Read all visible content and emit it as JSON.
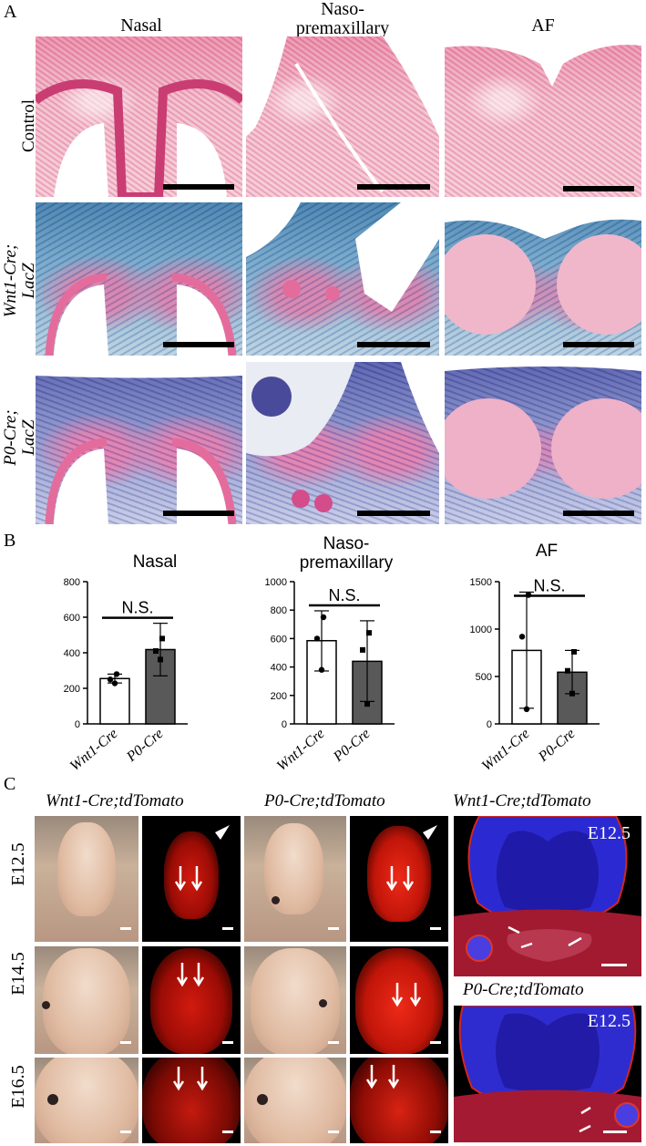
{
  "panel_a": {
    "letter": "A",
    "columns": [
      "Nasal",
      "Naso-\npremaxillary",
      "AF"
    ],
    "rows": [
      "Control",
      "Wnt1-Cre;\nLacZ",
      "P0-Cre;\nLacZ"
    ]
  },
  "panel_b": {
    "letter": "B"
  },
  "chart_data": [
    {
      "type": "bar",
      "title": "Nasal",
      "categories": [
        "Wnt1-Cre",
        "P0-Cre"
      ],
      "values": [
        255,
        418
      ],
      "errors": [
        [
          230,
          280
        ],
        [
          270,
          566
        ]
      ],
      "points": [
        [
          280,
          250,
          228
        ],
        [
          480,
          410,
          362
        ]
      ],
      "ylim": [
        0,
        800
      ],
      "yticks": [
        0,
        200,
        400,
        600,
        800
      ],
      "significance": "N.S."
    },
    {
      "type": "bar",
      "title": "Naso-\npremaxillary",
      "categories": [
        "Wnt1-Cre",
        "P0-Cre"
      ],
      "values": [
        585,
        440
      ],
      "errors": [
        [
          372,
          795
        ],
        [
          158,
          725
        ]
      ],
      "points": [
        [
          750,
          600,
          380
        ],
        [
          640,
          520,
          140
        ]
      ],
      "ylim": [
        0,
        1000
      ],
      "yticks": [
        0,
        200,
        400,
        600,
        800,
        1000
      ],
      "significance": "N.S."
    },
    {
      "type": "bar",
      "title": "AF",
      "categories": [
        "Wnt1-Cre",
        "P0-Cre"
      ],
      "values": [
        775,
        545
      ],
      "errors": [
        [
          165,
          1390
        ],
        [
          318,
          775
        ]
      ],
      "points": [
        [
          1360,
          920,
          155
        ],
        [
          760,
          560,
          320
        ]
      ],
      "ylim": [
        0,
        1500
      ],
      "yticks": [
        0,
        500,
        1000,
        1500
      ],
      "significance": "N.S."
    }
  ],
  "panel_c": {
    "letter": "C",
    "group_titles": [
      "Wnt1-Cre;tdTomato",
      "P0-Cre;tdTomato",
      "Wnt1-Cre;tdTomato",
      "P0-Cre;tdTomato"
    ],
    "stages": [
      "E12.5",
      "E14.5",
      "E16.5"
    ],
    "section_label": "E12.5"
  },
  "colors": {
    "bar_wnt1": "#ffffff",
    "bar_p0": "#595959",
    "tdtomato": "#d31a0f",
    "dapi": "#2a2fd6"
  }
}
